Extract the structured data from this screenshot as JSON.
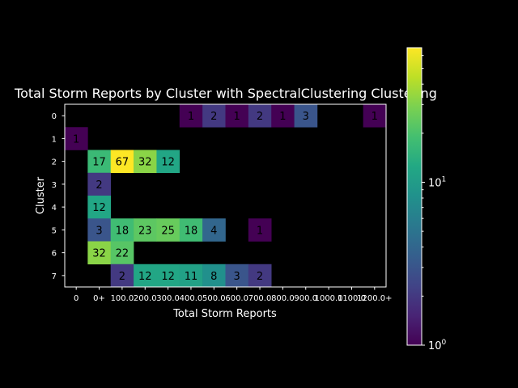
{
  "chart_data": {
    "type": "heatmap",
    "title": "Total Storm Reports by Cluster with SpectralClustering Clustering",
    "xlabel": "Total Storm Reports",
    "ylabel": "Cluster",
    "x_ticks": [
      "0",
      "0+",
      "100.0",
      "200.0",
      "300.0",
      "400.0",
      "500.0",
      "600.0",
      "700.0",
      "800.0",
      "900.0",
      "1000.0",
      "1100.0",
      "1200.0+"
    ],
    "y_ticks": [
      "0",
      "1",
      "2",
      "3",
      "4",
      "5",
      "6",
      "7"
    ],
    "colorscale": "viridis",
    "color_scale_type": "log",
    "colorbar_range": [
      1,
      67
    ],
    "colorbar_tick_labels": [
      "10^0",
      "10^1"
    ],
    "matrix": [
      [
        null,
        null,
        null,
        null,
        null,
        1,
        2,
        1,
        2,
        1,
        3,
        null,
        null,
        1
      ],
      [
        1,
        null,
        null,
        null,
        null,
        null,
        null,
        null,
        null,
        null,
        null,
        null,
        null,
        null
      ],
      [
        null,
        17,
        67,
        32,
        12,
        null,
        null,
        null,
        null,
        null,
        null,
        null,
        null,
        null
      ],
      [
        null,
        2,
        null,
        null,
        null,
        null,
        null,
        null,
        null,
        null,
        null,
        null,
        null,
        null
      ],
      [
        null,
        12,
        null,
        null,
        null,
        null,
        null,
        null,
        null,
        null,
        null,
        null,
        null,
        null
      ],
      [
        null,
        3,
        18,
        23,
        25,
        18,
        4,
        null,
        1,
        null,
        null,
        null,
        null,
        null
      ],
      [
        null,
        32,
        22,
        null,
        null,
        null,
        null,
        null,
        null,
        null,
        null,
        null,
        null,
        null
      ],
      [
        null,
        null,
        2,
        12,
        12,
        11,
        8,
        3,
        2,
        null,
        null,
        null,
        null,
        null
      ]
    ]
  }
}
